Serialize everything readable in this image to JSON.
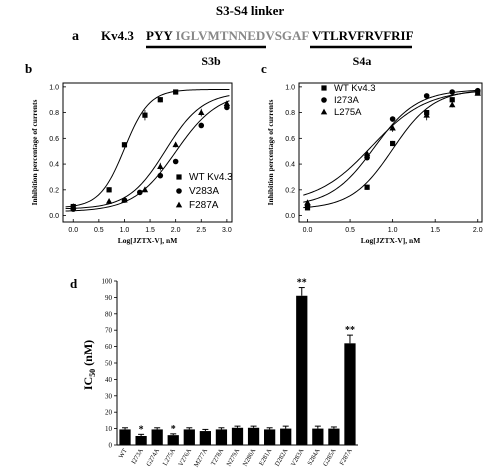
{
  "header": {
    "title": "S3-S4 linker",
    "panel_label": "a",
    "channel": "Kv4.3",
    "seq_part1": "PYY",
    "seq_part2": "IGLVMTNNEDVSGAF",
    "seq_part3": "VTLRVFRVFRIF",
    "segment_s3b": "S3b",
    "segment_s4a": "S4a",
    "colors": {
      "grey_residues": "#888888",
      "black": "#000000"
    }
  },
  "chart_data": [
    {
      "id": "b",
      "type": "scatter",
      "panel_label": "b",
      "xlabel": "Log[JZTX-V], nM",
      "ylabel": "Inhibition percentage of currents",
      "xlim": [
        -0.2,
        3.1
      ],
      "ylim": [
        -0.05,
        1.03
      ],
      "xticks": [
        "0.0",
        "0.5",
        "1.0",
        "1.5",
        "2.0",
        "2.5",
        "3.0"
      ],
      "xtick_values": [
        0,
        0.5,
        1,
        1.5,
        2,
        2.5,
        3
      ],
      "yticks": [
        "0.0",
        "0.2",
        "0.4",
        "0.6",
        "0.8",
        "1.0"
      ],
      "ytick_values": [
        0,
        0.2,
        0.4,
        0.6,
        0.8,
        1.0
      ],
      "legend_position": "lower-right",
      "series": [
        {
          "name": "WT Kv4.3",
          "marker": "square",
          "x": [
            0,
            0.7,
            1,
            1.4,
            1.7,
            2
          ],
          "y": [
            0.07,
            0.2,
            0.55,
            0.78,
            0.9,
            0.96
          ],
          "err": [
            0.01,
            0.02,
            0.02,
            0.04,
            0.02,
            0.01
          ],
          "fit": {
            "ic50_log": 1.0,
            "hill": 1.8,
            "bottom": 0.06,
            "top": 0.98
          }
        },
        {
          "name": "V283A",
          "marker": "circle",
          "x": [
            0,
            1,
            1.3,
            1.7,
            2,
            2.5,
            3
          ],
          "y": [
            0.05,
            0.12,
            0.18,
            0.31,
            0.42,
            0.7,
            0.84
          ],
          "err": [
            0.01,
            0.01,
            0.01,
            0.02,
            0.02,
            0.02,
            0.01
          ],
          "fit": {
            "ic50_log": 2.0,
            "hill": 1.05,
            "bottom": 0.03,
            "top": 0.96
          }
        },
        {
          "name": "F287A",
          "marker": "triangle",
          "x": [
            0,
            0.7,
            1,
            1.4,
            1.7,
            2,
            2.5,
            3
          ],
          "y": [
            0.07,
            0.11,
            0.12,
            0.2,
            0.38,
            0.55,
            0.8,
            0.87
          ],
          "err": [
            0.01,
            0.01,
            0.01,
            0.02,
            0.03,
            0.02,
            0.03,
            0.02
          ],
          "fit": {
            "ic50_log": 1.8,
            "hill": 1.2,
            "bottom": 0.05,
            "top": 0.96
          }
        }
      ]
    },
    {
      "id": "c",
      "type": "scatter",
      "panel_label": "c",
      "xlabel": "Log[JZTX-V], nM",
      "ylabel": "Inhibition percentage of currents",
      "xlim": [
        -0.1,
        2.05
      ],
      "ylim": [
        -0.05,
        1.03
      ],
      "xticks": [
        "0.0",
        "0.5",
        "1.0",
        "1.5",
        "2.0"
      ],
      "xtick_values": [
        0,
        0.5,
        1,
        1.5,
        2
      ],
      "yticks": [
        "0.0",
        "0.2",
        "0.4",
        "0.6",
        "0.8",
        "1.0"
      ],
      "ytick_values": [
        0,
        0.2,
        0.4,
        0.6,
        0.8,
        1.0
      ],
      "legend_position": "top-left",
      "series": [
        {
          "name": "WT Kv4.3",
          "marker": "square",
          "x": [
            0,
            0.7,
            1,
            1.4,
            1.7,
            2
          ],
          "y": [
            0.06,
            0.22,
            0.56,
            0.8,
            0.9,
            0.96
          ],
          "err": [
            0.01,
            0.02,
            0.02,
            0.02,
            0.02,
            0.01
          ],
          "fit": {
            "ic50_log": 1.0,
            "hill": 1.8,
            "bottom": 0.05,
            "top": 0.98
          }
        },
        {
          "name": "I273A",
          "marker": "circle",
          "x": [
            0,
            0.7,
            1,
            1.4,
            1.7,
            2
          ],
          "y": [
            0.08,
            0.45,
            0.75,
            0.93,
            0.96,
            0.97
          ],
          "err": [
            0.01,
            0.02,
            0.02,
            0.01,
            0.01,
            0.01
          ],
          "fit": {
            "ic50_log": 0.78,
            "hill": 1.7,
            "bottom": 0.07,
            "top": 0.98
          }
        },
        {
          "name": "L275A",
          "marker": "triangle",
          "x": [
            0,
            0.7,
            1,
            1.4,
            1.7,
            2
          ],
          "y": [
            0.1,
            0.48,
            0.68,
            0.78,
            0.86,
            0.95
          ],
          "err": [
            0.01,
            0.02,
            0.03,
            0.04,
            0.02,
            0.01
          ],
          "fit": {
            "ic50_log": 0.75,
            "hill": 1.35,
            "bottom": 0.09,
            "top": 0.98
          }
        }
      ]
    },
    {
      "id": "d",
      "type": "bar",
      "panel_label": "d",
      "ylabel_main": "IC",
      "ylabel_sub": "50",
      "ylabel_unit": "(nM)",
      "ylim": [
        0,
        100
      ],
      "yticks": [
        "0",
        "10",
        "20",
        "30",
        "40",
        "50",
        "60",
        "70",
        "80",
        "90",
        "100"
      ],
      "ytick_values": [
        0,
        10,
        20,
        30,
        40,
        50,
        60,
        70,
        80,
        90,
        100
      ],
      "categories": [
        "WT",
        "I273A",
        "G274A",
        "L275A",
        "V276A",
        "M277A",
        "T278A",
        "N279A",
        "N280A",
        "E281A",
        "D282A",
        "V283A",
        "S284A",
        "G285A",
        "F287A"
      ],
      "values": [
        9.5,
        5.5,
        9.5,
        6,
        9.5,
        8.5,
        9.5,
        10.5,
        10.5,
        9.5,
        10,
        91,
        10,
        10,
        62
      ],
      "err": [
        1,
        1,
        1,
        0.8,
        1,
        1,
        1,
        1,
        1,
        1,
        1.5,
        5,
        1.5,
        1,
        5
      ],
      "annotations": [
        "",
        "*",
        "",
        "*",
        "",
        "",
        "",
        "",
        "",
        "",
        "",
        "**",
        "",
        "",
        "**"
      ],
      "bar_color": "#000000"
    }
  ]
}
